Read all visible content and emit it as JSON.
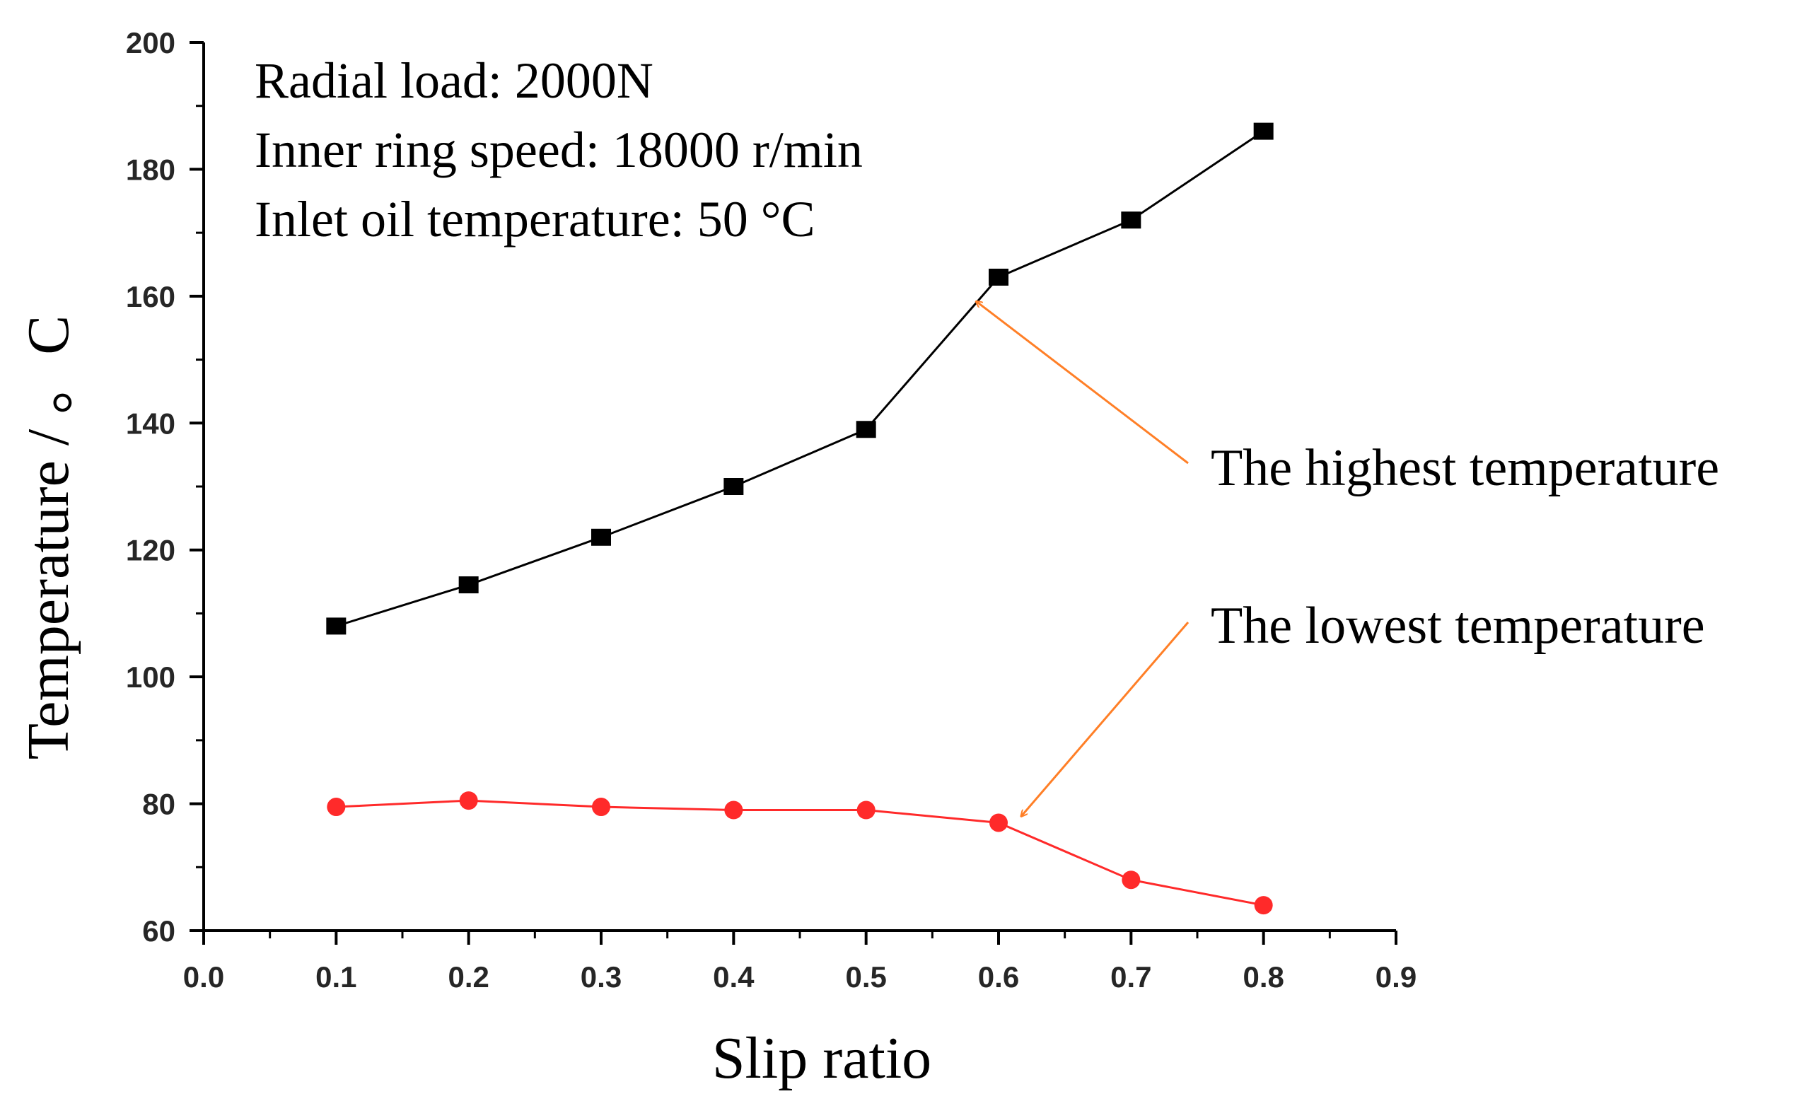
{
  "chart_data": {
    "type": "line",
    "title": "",
    "xlabel": "Slip ratio",
    "ylabel": "Temperature / 。C",
    "xlim": [
      0.0,
      0.9
    ],
    "ylim": [
      60,
      200
    ],
    "x_ticks": [
      "0.0",
      "0.1",
      "0.2",
      "0.3",
      "0.4",
      "0.5",
      "0.6",
      "0.7",
      "0.8",
      "0.9"
    ],
    "y_ticks": [
      "60",
      "80",
      "100",
      "120",
      "140",
      "160",
      "180",
      "200"
    ],
    "grid": false,
    "x": [
      0.1,
      0.2,
      0.3,
      0.4,
      0.5,
      0.6,
      0.7,
      0.8
    ],
    "series": [
      {
        "name": "The highest temperature",
        "marker": "square",
        "color": "#000000",
        "values": [
          108,
          114.5,
          122,
          130,
          139,
          163,
          172,
          186
        ]
      },
      {
        "name": "The lowest temperature",
        "marker": "circle",
        "color": "#ff2a2a",
        "values": [
          79.5,
          80.5,
          79.5,
          79,
          79,
          77,
          68,
          64
        ]
      }
    ],
    "conditions": [
      "Radial load: 2000N",
      "Inner ring speed: 18000 r/min",
      "Inlet oil temperature: 50 °C"
    ],
    "callouts": [
      {
        "label": "The highest temperature",
        "series": 0,
        "color": "#ff7f27"
      },
      {
        "label": "The lowest temperature",
        "series": 1,
        "color": "#ff7f27"
      }
    ],
    "colors": {
      "axis": "#000000",
      "tick_text": "#262626",
      "arrow": "#ff7f27"
    }
  }
}
